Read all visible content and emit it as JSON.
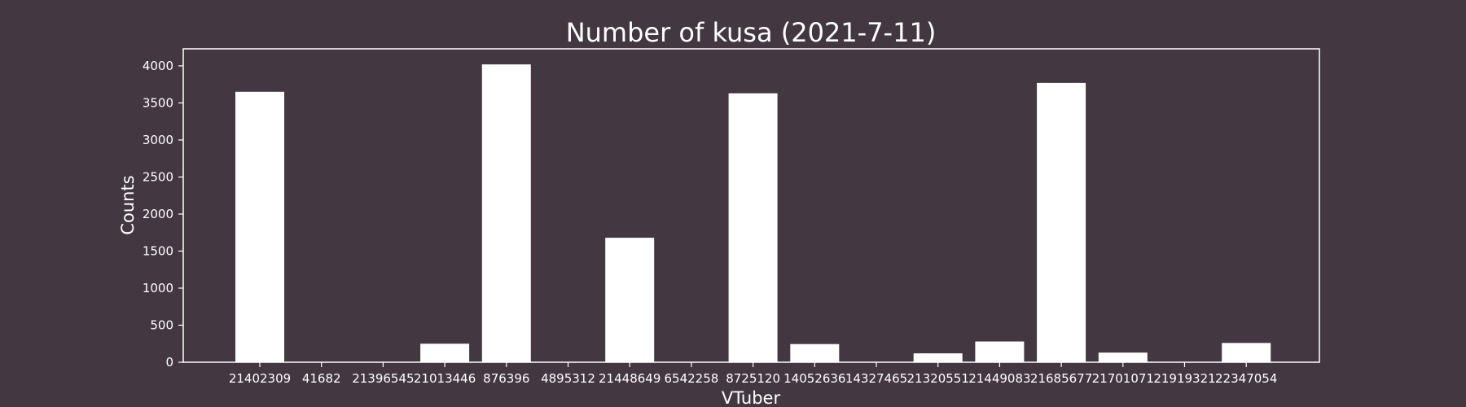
{
  "chart_data": {
    "type": "bar",
    "title": "Number of kusa (2021-7-11)",
    "xlabel": "VTuber",
    "ylabel": "Counts",
    "ylim": [
      0,
      4230
    ],
    "yticks": [
      0,
      500,
      1000,
      1500,
      2000,
      2500,
      3000,
      3500,
      4000
    ],
    "grid": false,
    "categories": [
      "21402309",
      "41682",
      "21396545",
      "21013446",
      "876396",
      "4895312",
      "21448649",
      "6542258",
      "8725120",
      "14052636",
      "14327465",
      "21320551",
      "21449083",
      "21685677",
      "21701071",
      "21919321",
      "22347054"
    ],
    "values": [
      3650,
      0,
      0,
      250,
      4020,
      0,
      1680,
      0,
      3630,
      245,
      0,
      120,
      280,
      3770,
      130,
      0,
      260
    ],
    "colors": {
      "background": "#433842",
      "bar": "#ffffff",
      "axis": "#ffffff",
      "text": "#ffffff"
    }
  }
}
